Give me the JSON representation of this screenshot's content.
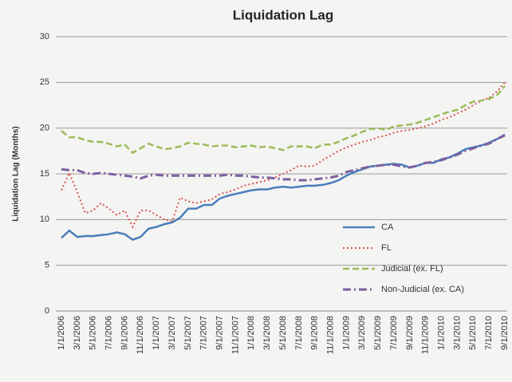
{
  "chart_data": {
    "type": "line",
    "title": "Liquidation Lag",
    "y_label": "Liquidation Lag (Months)",
    "categories": [
      "1/1/2006",
      null,
      "3/1/2006",
      null,
      "5/1/2006",
      null,
      "7/1/2006",
      null,
      "9/1/2006",
      null,
      "11/1/2006",
      null,
      "1/1/2007",
      null,
      "3/1/2007",
      null,
      "5/1/2007",
      null,
      "7/1/2007",
      null,
      "9/1/2007",
      null,
      "11/1/2007",
      null,
      "1/1/2008",
      null,
      "3/1/2008",
      null,
      "5/1/2008",
      null,
      "7/1/2008",
      null,
      "9/1/2008",
      null,
      "11/1/2008",
      null,
      "1/1/2009",
      null,
      "3/1/2009",
      null,
      "5/1/2009",
      null,
      "7/1/2009",
      null,
      "9/1/2009",
      null,
      "11/1/2009",
      null,
      "1/1/2010",
      null,
      "3/1/2010",
      null,
      "5/1/2010",
      null,
      "7/1/2010",
      null,
      "9/1/2010"
    ],
    "series": [
      {
        "name": "CA",
        "color": "#4a7ebb",
        "line_style": "solid",
        "values": [
          8.0,
          8.8,
          8.1,
          8.2,
          8.2,
          8.3,
          8.4,
          8.6,
          8.4,
          7.8,
          8.1,
          9.0,
          9.2,
          9.5,
          9.7,
          10.2,
          11.2,
          11.2,
          11.6,
          11.6,
          12.3,
          12.6,
          12.8,
          13.0,
          13.2,
          13.3,
          13.3,
          13.5,
          13.6,
          13.5,
          13.6,
          13.7,
          13.7,
          13.8,
          14.0,
          14.3,
          14.8,
          15.2,
          15.5,
          15.8,
          15.9,
          16.0,
          16.1,
          16.0,
          15.7,
          15.9,
          16.2,
          16.2,
          16.6,
          16.8,
          17.2,
          17.7,
          17.9,
          18.1,
          18.4,
          18.8,
          19.3
        ]
      },
      {
        "name": "FL",
        "color": "#d9534f",
        "line_style": "dotted",
        "values": [
          13.2,
          15.1,
          13.0,
          10.7,
          11.0,
          11.8,
          11.2,
          10.5,
          11.0,
          9.2,
          11.0,
          11.0,
          10.5,
          10.0,
          9.8,
          12.4,
          12.0,
          11.8,
          12.0,
          12.2,
          12.8,
          13.0,
          13.3,
          13.7,
          13.9,
          14.1,
          14.3,
          14.6,
          15.0,
          15.4,
          15.9,
          15.8,
          15.9,
          16.5,
          17.0,
          17.5,
          17.9,
          18.2,
          18.5,
          18.7,
          19.0,
          19.2,
          19.5,
          19.7,
          19.8,
          20.0,
          20.2,
          20.5,
          20.9,
          21.2,
          21.6,
          22.0,
          22.5,
          23.0,
          23.3,
          24.0,
          25.0
        ]
      },
      {
        "name": "Judicial (ex. FL)",
        "color": "#9bbb59",
        "line_style": "dashed",
        "values": [
          19.7,
          19.0,
          19.0,
          18.7,
          18.5,
          18.5,
          18.3,
          18.0,
          18.2,
          17.3,
          17.8,
          18.3,
          18.0,
          17.7,
          17.8,
          18.0,
          18.4,
          18.3,
          18.2,
          18.0,
          18.1,
          18.1,
          17.9,
          18.0,
          18.1,
          17.9,
          18.0,
          17.8,
          17.6,
          18.0,
          18.0,
          18.0,
          17.8,
          18.2,
          18.2,
          18.5,
          18.9,
          19.2,
          19.6,
          19.9,
          20.0,
          19.8,
          20.2,
          20.3,
          20.4,
          20.6,
          20.9,
          21.2,
          21.5,
          21.8,
          22.0,
          22.5,
          22.9,
          23.0,
          23.2,
          23.6,
          24.6
        ]
      },
      {
        "name": "Non-Judicial (ex. CA)",
        "color": "#7d5fa0",
        "line_style": "dashdot",
        "values": [
          15.5,
          15.4,
          15.4,
          15.1,
          15.0,
          15.1,
          15.0,
          14.9,
          14.8,
          14.7,
          14.5,
          14.8,
          14.9,
          14.8,
          14.8,
          14.8,
          14.8,
          14.8,
          14.8,
          14.8,
          14.8,
          14.9,
          14.8,
          14.8,
          14.7,
          14.6,
          14.6,
          14.5,
          14.4,
          14.4,
          14.3,
          14.3,
          14.4,
          14.5,
          14.6,
          14.8,
          15.2,
          15.4,
          15.6,
          15.8,
          15.9,
          16.0,
          16.0,
          15.8,
          15.7,
          15.9,
          16.2,
          16.3,
          16.5,
          16.8,
          17.1,
          17.5,
          17.8,
          18.1,
          18.3,
          18.8,
          19.2
        ]
      }
    ],
    "ylim": [
      0,
      30
    ],
    "yticks": [
      0,
      5,
      10,
      15,
      20,
      25,
      30
    ],
    "grid": true,
    "legend": "right"
  }
}
